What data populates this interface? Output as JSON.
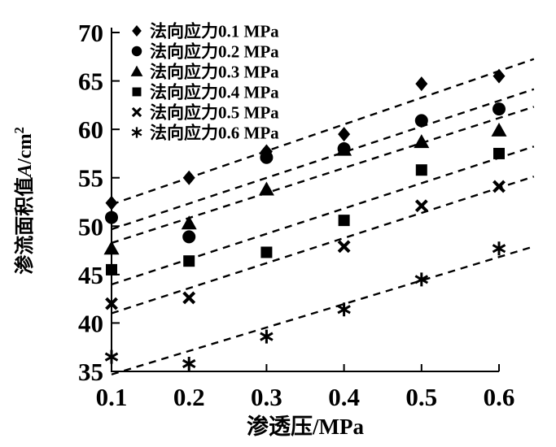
{
  "figure": {
    "background_color": "#ffffff",
    "ink_color": "#000000"
  },
  "chart_data": {
    "type": "scatter",
    "title": "",
    "xlabel": "渗透压/MPa",
    "ylabel": "渗流面积值A/cm2",
    "ylabel_parts": {
      "prefix": "渗流面积值",
      "symbol": "A",
      "unit": "/cm",
      "sup": "2"
    },
    "xlim": [
      0.1,
      0.6
    ],
    "ylim": [
      35,
      70
    ],
    "x_ticks": [
      "0.1",
      "0.2",
      "0.3",
      "0.4",
      "0.5",
      "0.6"
    ],
    "y_ticks": [
      "35",
      "40",
      "45",
      "50",
      "55",
      "60",
      "65",
      "70"
    ],
    "grid": false,
    "legend_position": "upper-left-inside",
    "trendlines": "dashed-linear-fit-per-series",
    "x": [
      0.1,
      0.2,
      0.3,
      0.4,
      0.5,
      0.6
    ],
    "series": [
      {
        "name": "法向应力0.1 MPa",
        "marker": "diamond",
        "values": [
          52.4,
          55.0,
          57.7,
          59.5,
          64.7,
          65.5
        ]
      },
      {
        "name": "法向应力0.2 MPa",
        "marker": "circle",
        "values": [
          50.9,
          48.9,
          57.1,
          58.0,
          60.9,
          62.1
        ]
      },
      {
        "name": "法向应力0.3 MPa",
        "marker": "triangle",
        "values": [
          47.7,
          50.3,
          53.8,
          57.9,
          58.7,
          59.9
        ]
      },
      {
        "name": "法向应力0.4 MPa",
        "marker": "square",
        "values": [
          45.5,
          46.4,
          47.3,
          50.6,
          55.8,
          57.5
        ]
      },
      {
        "name": "法向应力0.5 MPa",
        "marker": "x",
        "values": [
          42.0,
          42.6,
          null,
          47.9,
          52.1,
          54.1
        ]
      },
      {
        "name": "法向应力0.6 MPa",
        "marker": "asterisk",
        "values": [
          36.5,
          35.8,
          38.6,
          41.4,
          44.5,
          47.7
        ]
      }
    ]
  }
}
